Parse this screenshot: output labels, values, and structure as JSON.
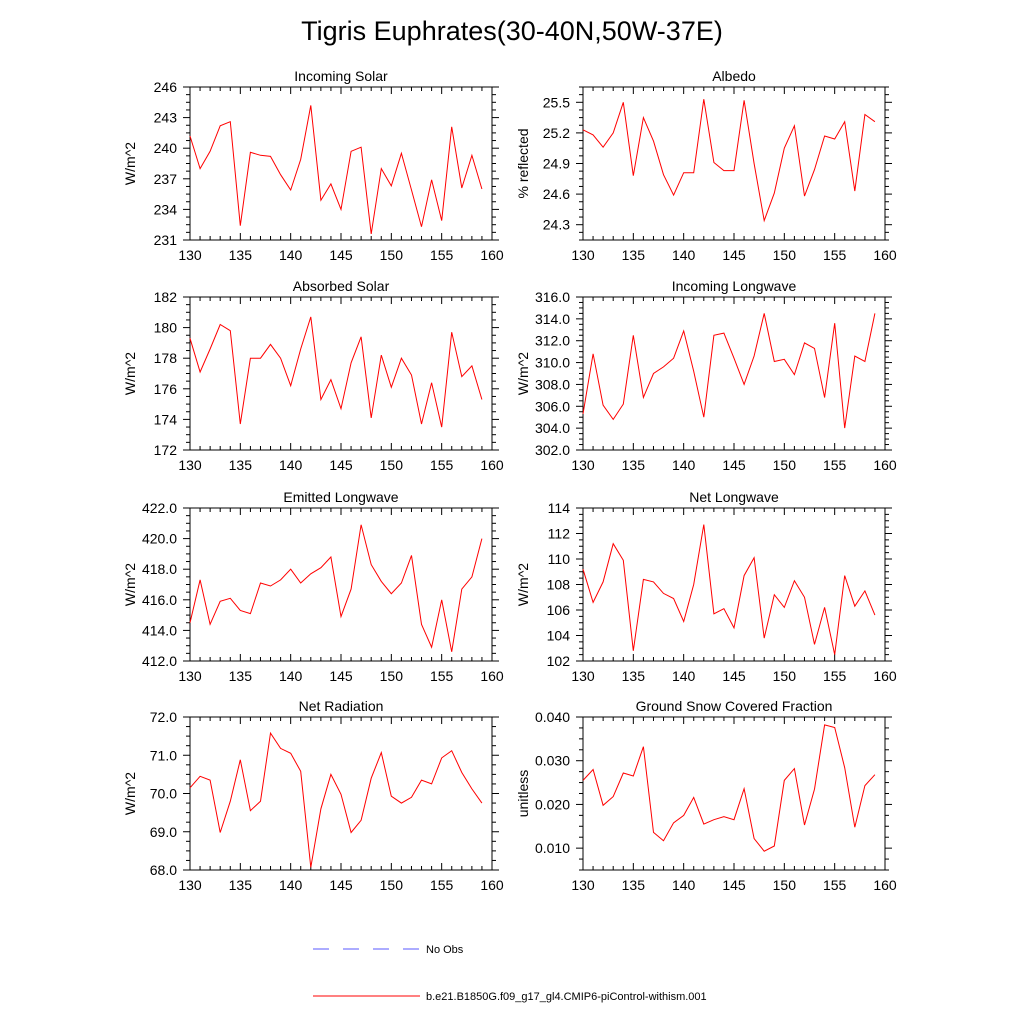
{
  "figure": {
    "title": "Tigris Euphrates(30-40N,50W-37E)",
    "line_color": "#ff0000",
    "obs_color": "#5a5aff"
  },
  "legend": {
    "obs_label": "No Obs",
    "model_label": "b.e21.B1850G.f09_g17_gl4.CMIP6-piControl-withism.001"
  },
  "chart_data": [
    {
      "type": "line",
      "title": "Incoming Solar",
      "ylabel": "W/m^2",
      "xlim": [
        130,
        160
      ],
      "ylim": [
        231,
        246
      ],
      "yticks": [
        231,
        234,
        237,
        240,
        243,
        246
      ],
      "ytick_labels": [
        "231",
        "234",
        "237",
        "240",
        "243",
        "246"
      ],
      "xticks": [
        130,
        135,
        140,
        145,
        150,
        155,
        160
      ],
      "x": [
        130,
        131,
        132,
        133,
        134,
        135,
        136,
        137,
        138,
        139,
        140,
        141,
        142,
        143,
        144,
        145,
        146,
        147,
        148,
        149,
        150,
        151,
        152,
        153,
        154,
        155,
        156,
        157,
        158,
        159
      ],
      "series": [
        {
          "values": [
            241.2,
            238.0,
            239.7,
            242.2,
            242.6,
            232.4,
            239.6,
            239.3,
            239.2,
            237.4,
            235.9,
            238.9,
            244.2,
            234.9,
            236.5,
            234.0,
            239.7,
            240.1,
            231.6,
            238.0,
            236.3,
            239.5,
            235.9,
            232.3,
            236.9,
            232.9,
            242.1,
            236.1,
            239.3,
            236.0
          ]
        }
      ]
    },
    {
      "type": "line",
      "title": "Albedo",
      "ylabel": "% reflected",
      "xlim": [
        130,
        160
      ],
      "ylim": [
        24.15,
        25.65
      ],
      "yticks": [
        24.3,
        24.6,
        24.9,
        25.2,
        25.5
      ],
      "ytick_labels": [
        "24.3",
        "24.6",
        "24.9",
        "25.2",
        "25.5"
      ],
      "xticks": [
        130,
        135,
        140,
        145,
        150,
        155,
        160
      ],
      "x": [
        130,
        131,
        132,
        133,
        134,
        135,
        136,
        137,
        138,
        139,
        140,
        141,
        142,
        143,
        144,
        145,
        146,
        147,
        148,
        149,
        150,
        151,
        152,
        153,
        154,
        155,
        156,
        157,
        158,
        159
      ],
      "series": [
        {
          "values": [
            25.23,
            25.18,
            25.06,
            25.2,
            25.5,
            24.78,
            25.35,
            25.12,
            24.79,
            24.59,
            24.81,
            24.81,
            25.53,
            24.91,
            24.83,
            24.83,
            25.52,
            24.9,
            24.34,
            24.61,
            25.05,
            25.27,
            24.58,
            24.84,
            25.17,
            25.14,
            25.31,
            24.63,
            25.38,
            25.31
          ]
        }
      ]
    },
    {
      "type": "line",
      "title": "Absorbed Solar",
      "ylabel": "W/m^2",
      "xlim": [
        130,
        160
      ],
      "ylim": [
        172,
        182
      ],
      "yticks": [
        172,
        174,
        176,
        178,
        180,
        182
      ],
      "ytick_labels": [
        "172",
        "174",
        "176",
        "178",
        "180",
        "182"
      ],
      "xticks": [
        130,
        135,
        140,
        145,
        150,
        155,
        160
      ],
      "x": [
        130,
        131,
        132,
        133,
        134,
        135,
        136,
        137,
        138,
        139,
        140,
        141,
        142,
        143,
        144,
        145,
        146,
        147,
        148,
        149,
        150,
        151,
        152,
        153,
        154,
        155,
        156,
        157,
        158,
        159
      ],
      "series": [
        {
          "values": [
            179.3,
            177.1,
            178.6,
            180.2,
            179.8,
            173.7,
            178.0,
            178.0,
            178.9,
            178.0,
            176.2,
            178.6,
            180.7,
            175.3,
            176.6,
            174.7,
            177.7,
            179.4,
            174.1,
            178.2,
            176.1,
            178.0,
            176.9,
            173.7,
            176.4,
            173.5,
            179.7,
            176.8,
            177.5,
            175.3
          ]
        }
      ]
    },
    {
      "type": "line",
      "title": "Incoming Longwave",
      "ylabel": "W/m^2",
      "xlim": [
        130,
        160
      ],
      "ylim": [
        302,
        316
      ],
      "yticks": [
        302,
        304,
        306,
        308,
        310,
        312,
        314,
        316
      ],
      "ytick_labels": [
        "302.0",
        "304.0",
        "306.0",
        "308.0",
        "310.0",
        "312.0",
        "314.0",
        "316.0"
      ],
      "xticks": [
        130,
        135,
        140,
        145,
        150,
        155,
        160
      ],
      "x": [
        130,
        131,
        132,
        133,
        134,
        135,
        136,
        137,
        138,
        139,
        140,
        141,
        142,
        143,
        144,
        145,
        146,
        147,
        148,
        149,
        150,
        151,
        152,
        153,
        154,
        155,
        156,
        157,
        158,
        159
      ],
      "series": [
        {
          "values": [
            305.3,
            310.8,
            306.1,
            304.8,
            306.2,
            312.5,
            306.8,
            309.0,
            309.6,
            310.4,
            312.9,
            309.2,
            305.0,
            312.5,
            312.7,
            310.4,
            308.0,
            310.6,
            314.5,
            310.1,
            310.3,
            308.9,
            311.8,
            311.3,
            306.8,
            313.6,
            304.0,
            310.6,
            310.1,
            314.5
          ]
        }
      ]
    },
    {
      "type": "line",
      "title": "Emitted Longwave",
      "ylabel": "W/m^2",
      "xlim": [
        130,
        160
      ],
      "ylim": [
        412,
        422
      ],
      "yticks": [
        412,
        414,
        416,
        418,
        420,
        422
      ],
      "ytick_labels": [
        "412.0",
        "414.0",
        "416.0",
        "418.0",
        "420.0",
        "422.0"
      ],
      "xticks": [
        130,
        135,
        140,
        145,
        150,
        155,
        160
      ],
      "x": [
        130,
        131,
        132,
        133,
        134,
        135,
        136,
        137,
        138,
        139,
        140,
        141,
        142,
        143,
        144,
        145,
        146,
        147,
        148,
        149,
        150,
        151,
        152,
        153,
        154,
        155,
        156,
        157,
        158,
        159
      ],
      "series": [
        {
          "values": [
            414.5,
            417.3,
            414.4,
            415.9,
            416.1,
            415.3,
            415.1,
            417.1,
            416.9,
            417.3,
            418.0,
            417.1,
            417.7,
            418.1,
            418.8,
            414.9,
            416.7,
            420.9,
            418.3,
            417.2,
            416.4,
            417.1,
            418.9,
            414.4,
            412.9,
            416.0,
            412.6,
            416.7,
            417.5,
            420.0
          ]
        }
      ]
    },
    {
      "type": "line",
      "title": "Net Longwave",
      "ylabel": "W/m^2",
      "xlim": [
        130,
        160
      ],
      "ylim": [
        102,
        114
      ],
      "yticks": [
        102,
        104,
        106,
        108,
        110,
        112,
        114
      ],
      "ytick_labels": [
        "102",
        "104",
        "106",
        "108",
        "110",
        "112",
        "114"
      ],
      "xticks": [
        130,
        135,
        140,
        145,
        150,
        155,
        160
      ],
      "x": [
        130,
        131,
        132,
        133,
        134,
        135,
        136,
        137,
        138,
        139,
        140,
        141,
        142,
        143,
        144,
        145,
        146,
        147,
        148,
        149,
        150,
        151,
        152,
        153,
        154,
        155,
        156,
        157,
        158,
        159
      ],
      "series": [
        {
          "values": [
            109.2,
            106.6,
            108.2,
            111.2,
            109.9,
            102.8,
            108.4,
            108.2,
            107.3,
            106.9,
            105.1,
            108.0,
            112.7,
            105.7,
            106.1,
            104.6,
            108.7,
            110.1,
            103.8,
            107.2,
            106.2,
            108.3,
            107.0,
            103.3,
            106.2,
            102.5,
            108.7,
            106.3,
            107.5,
            105.6
          ]
        }
      ]
    },
    {
      "type": "line",
      "title": "Net Radiation",
      "ylabel": "W/m^2",
      "xlim": [
        130,
        160
      ],
      "ylim": [
        68,
        72
      ],
      "yticks": [
        68,
        69,
        70,
        71,
        72
      ],
      "ytick_labels": [
        "68.0",
        "69.0",
        "70.0",
        "71.0",
        "72.0"
      ],
      "xticks": [
        130,
        135,
        140,
        145,
        150,
        155,
        160
      ],
      "x": [
        130,
        131,
        132,
        133,
        134,
        135,
        136,
        137,
        138,
        139,
        140,
        141,
        142,
        143,
        144,
        145,
        146,
        147,
        148,
        149,
        150,
        151,
        152,
        153,
        154,
        155,
        156,
        157,
        158,
        159
      ],
      "series": [
        {
          "values": [
            70.15,
            70.45,
            70.35,
            68.98,
            69.8,
            70.88,
            69.55,
            69.8,
            71.58,
            71.18,
            71.05,
            70.58,
            68.07,
            69.6,
            70.5,
            69.98,
            68.98,
            69.3,
            70.4,
            71.07,
            69.93,
            69.75,
            69.9,
            70.35,
            70.25,
            70.93,
            71.12,
            70.55,
            70.12,
            69.75
          ]
        }
      ]
    },
    {
      "type": "line",
      "title": "Ground Snow Covered Fraction",
      "ylabel": "unitless",
      "xlim": [
        130,
        160
      ],
      "ylim": [
        0.005,
        0.04
      ],
      "yticks": [
        0.01,
        0.02,
        0.03,
        0.04
      ],
      "ytick_labels": [
        "0.010",
        "0.020",
        "0.030",
        "0.040"
      ],
      "xticks": [
        130,
        135,
        140,
        145,
        150,
        155,
        160
      ],
      "x": [
        130,
        131,
        132,
        133,
        134,
        135,
        136,
        137,
        138,
        139,
        140,
        141,
        142,
        143,
        144,
        145,
        146,
        147,
        148,
        149,
        150,
        151,
        152,
        153,
        154,
        155,
        156,
        157,
        158,
        159
      ],
      "series": [
        {
          "values": [
            0.0255,
            0.028,
            0.0198,
            0.0218,
            0.0272,
            0.0265,
            0.0332,
            0.0136,
            0.0117,
            0.0158,
            0.0175,
            0.0216,
            0.0155,
            0.0165,
            0.0172,
            0.0165,
            0.0236,
            0.0122,
            0.0093,
            0.0105,
            0.0255,
            0.0282,
            0.0153,
            0.0235,
            0.0382,
            0.0376,
            0.0284,
            0.0148,
            0.0243,
            0.0268
          ]
        }
      ]
    }
  ]
}
